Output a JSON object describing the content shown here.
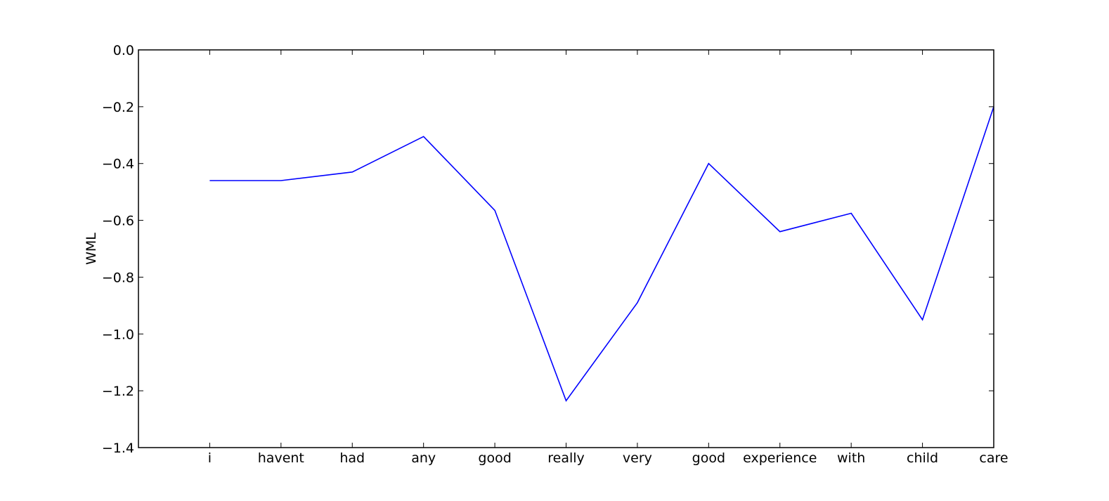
{
  "chart_data": {
    "type": "line",
    "title": "",
    "xlabel": "",
    "ylabel": "WML",
    "categories": [
      "i",
      "havent",
      "had",
      "any",
      "good",
      "really",
      "very",
      "good",
      "experience",
      "with",
      "child",
      "care"
    ],
    "series": [
      {
        "values": [
          -0.46,
          -0.46,
          -0.43,
          -0.305,
          -0.565,
          -1.235,
          -0.89,
          -0.4,
          -0.64,
          -0.575,
          -0.95,
          -0.2
        ],
        "color": "#0000ff"
      }
    ],
    "x_range": [
      -1,
      11
    ],
    "ylim": [
      -1.4,
      0.0
    ],
    "yticks": [
      0.0,
      -0.2,
      -0.4,
      -0.6,
      -0.8,
      -1.0,
      -1.2,
      -1.4
    ],
    "ytick_labels": [
      "0.0",
      "−0.2",
      "−0.4",
      "−0.6",
      "−0.8",
      "−1.0",
      "−1.2",
      "−1.4"
    ],
    "grid": false,
    "legend": "none"
  }
}
